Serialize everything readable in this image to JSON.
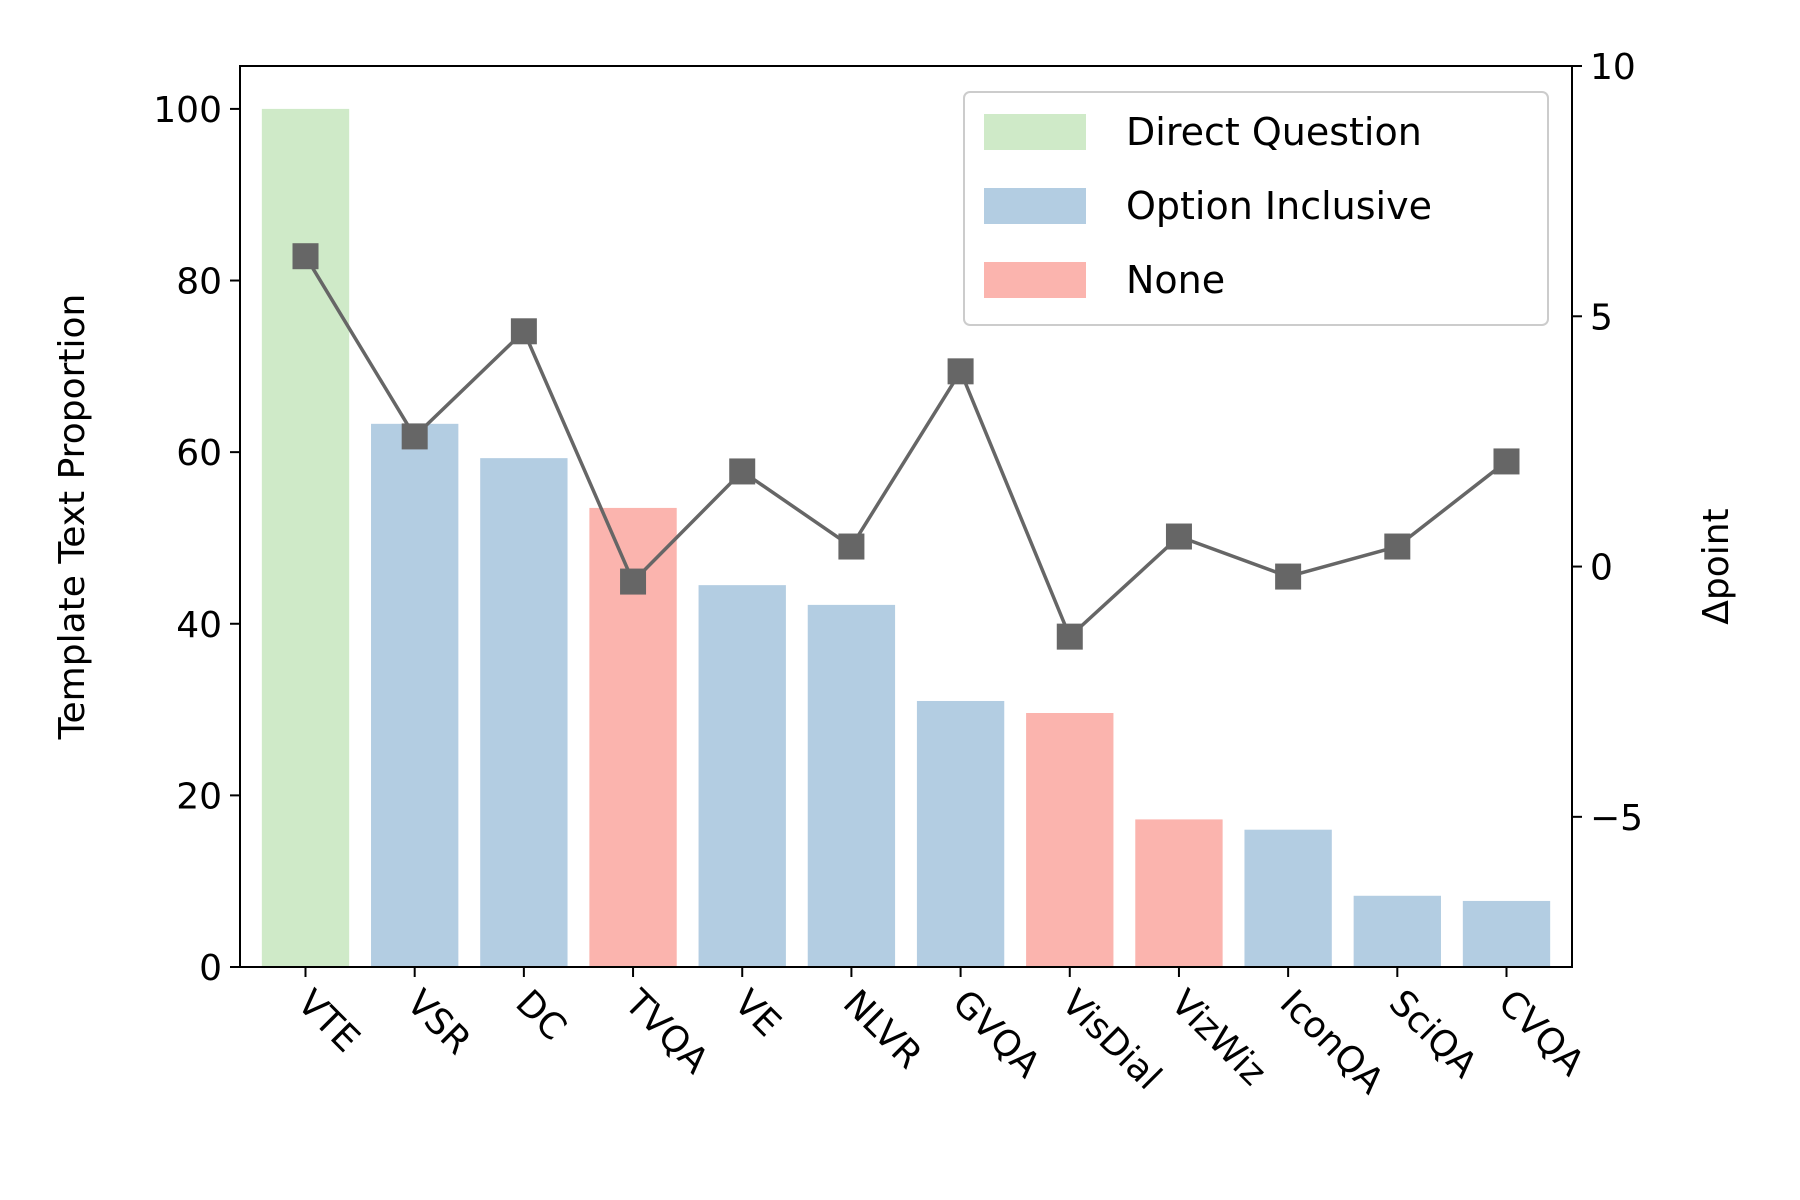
{
  "chart_data": {
    "type": "bar",
    "categories": [
      "VTE",
      "VSR",
      "DC",
      "TVQA",
      "VE",
      "NLVR",
      "GVQA",
      "VisDial",
      "VizWiz",
      "IconQA",
      "SciQA",
      "CVQA"
    ],
    "bar_groups": [
      "Direct Question",
      "Option Inclusive",
      "Option Inclusive",
      "None",
      "Option Inclusive",
      "Option Inclusive",
      "Option Inclusive",
      "None",
      "None",
      "Option Inclusive",
      "Option Inclusive",
      "Option Inclusive"
    ],
    "series": [
      {
        "axis": "left",
        "type": "bar",
        "values": [
          100,
          63.3,
          59.3,
          53.5,
          44.5,
          42.2,
          31.0,
          29.6,
          17.2,
          16.0,
          8.3,
          7.7
        ]
      },
      {
        "axis": "right",
        "type": "line",
        "color": "#666666",
        "values": [
          6.2,
          2.6,
          4.7,
          -0.3,
          1.9,
          0.4,
          3.9,
          -1.4,
          0.6,
          -0.2,
          0.4,
          2.1
        ]
      }
    ],
    "legend": {
      "position": "top-right",
      "entries": [
        {
          "label": "Direct Question",
          "color": "#cfeac8"
        },
        {
          "label": "Option Inclusive",
          "color": "#b3cde2"
        },
        {
          "label": "None",
          "color": "#fbb4ae"
        }
      ]
    },
    "ylabel": "Template Text Proportion",
    "ylim": [
      0,
      105
    ],
    "yticks": [
      0,
      20,
      40,
      60,
      80,
      100
    ],
    "y2label": "Δpoint",
    "y2lim": [
      -8,
      10
    ],
    "y2ticks": [
      -5,
      0,
      5,
      10
    ],
    "y2tick_labels": [
      "−5",
      "0",
      "5",
      "10"
    ],
    "xlabel": "",
    "grid": false
  }
}
